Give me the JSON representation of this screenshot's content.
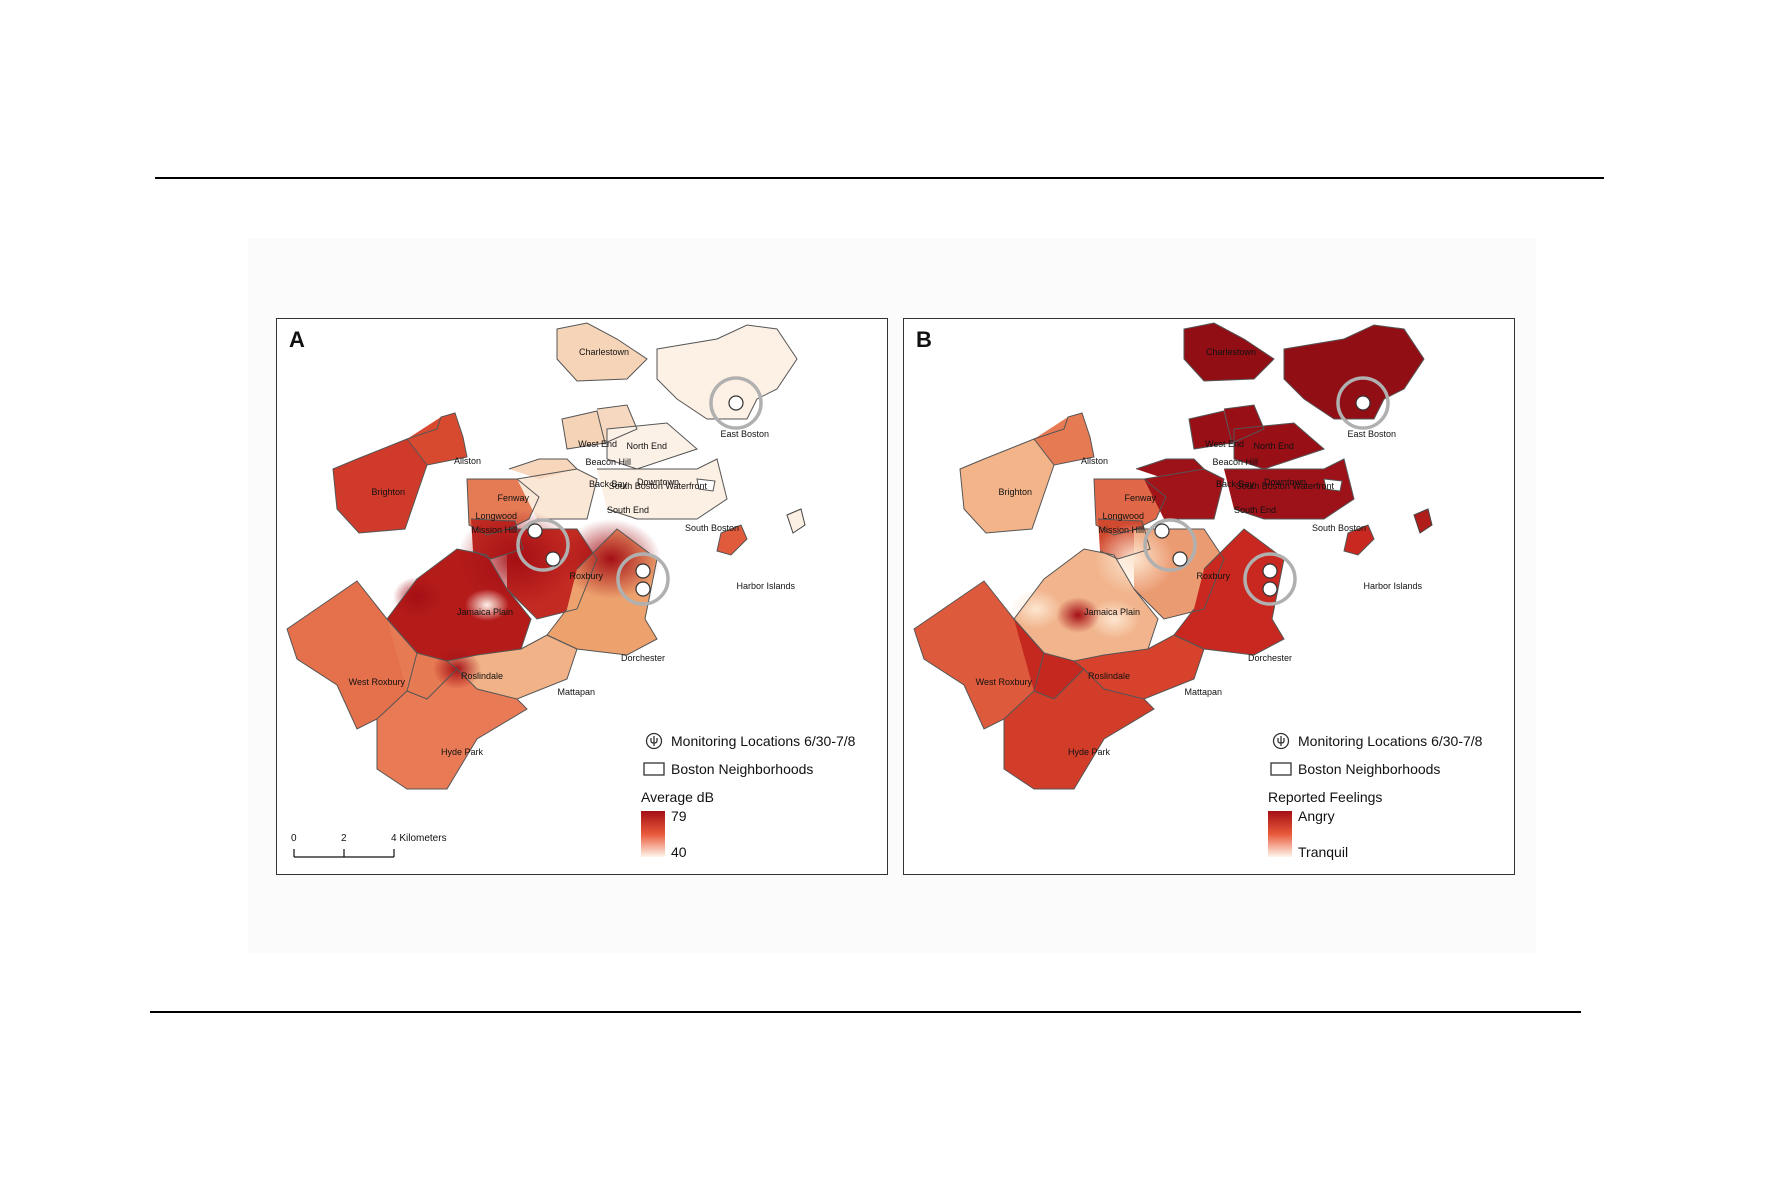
{
  "panels": [
    {
      "letter": "A",
      "legend": {
        "monitor_label": "Monitoring Locations 6/30-7/8",
        "hood_label": "Boston Neighborhoods",
        "ramp_title": "Average dB",
        "ramp_high": "79",
        "ramp_low": "40"
      },
      "scale": {
        "t0": "0",
        "t1": "2",
        "t2": "4 Kilometers"
      }
    },
    {
      "letter": "B",
      "legend": {
        "monitor_label": "Monitoring Locations 6/30-7/8",
        "hood_label": "Boston Neighborhoods",
        "ramp_title": "Reported Feelings",
        "ramp_high": "Angry",
        "ramp_low": "Tranquil"
      }
    }
  ],
  "neighborhoods": [
    "Charlestown",
    "East Boston",
    "West End",
    "North End",
    "Beacon Hill",
    "Back Bay",
    "Downtown",
    "South Boston Waterfront",
    "Fenway",
    "South End",
    "South Boston",
    "Allston",
    "Brighton",
    "Longwood",
    "Mission Hill",
    "Roxbury",
    "Jamaica Plain",
    "Harbor Islands",
    "Dorchester",
    "West Roxbury",
    "Roslindale",
    "Mattapan",
    "Hyde Park"
  ],
  "colors": {
    "ramp_high": "#a50f15",
    "ramp_mid": "#e8593a",
    "ramp_low": "#fff5eb",
    "monitor_ring": "#b0b0b0"
  }
}
